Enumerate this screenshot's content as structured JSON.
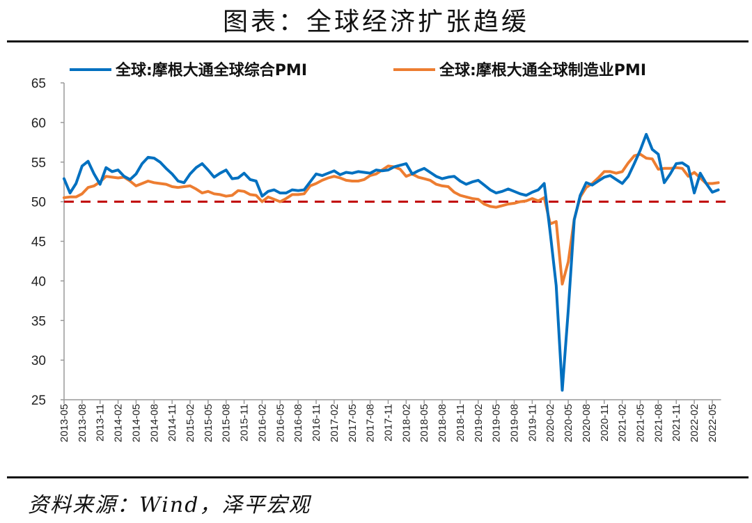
{
  "title": "图表：全球经济扩张趋缓",
  "source": "资料来源：Wind，泽平宏观",
  "chart_data": {
    "type": "line",
    "x_start": "2013-05",
    "x_tick_labels": [
      "2013-05",
      "2013-08",
      "2013-11",
      "2014-02",
      "2014-05",
      "2014-08",
      "2014-11",
      "2015-02",
      "2015-05",
      "2015-08",
      "2015-11",
      "2016-02",
      "2016-05",
      "2016-08",
      "2016-11",
      "2017-02",
      "2017-05",
      "2017-08",
      "2017-11",
      "2018-02",
      "2018-05",
      "2018-08",
      "2018-11",
      "2019-02",
      "2019-05",
      "2019-08",
      "2019-11",
      "2020-02",
      "2020-05",
      "2020-08",
      "2020-11",
      "2021-02",
      "2021-05",
      "2021-08",
      "2021-11",
      "2022-02",
      "2022-05"
    ],
    "y_tick_labels": [
      "25",
      "30",
      "35",
      "40",
      "45",
      "50",
      "55",
      "60",
      "65"
    ],
    "ylim": [
      25,
      65
    ],
    "reference_line": {
      "value": 50,
      "style": "dashed",
      "color": "#C00000"
    },
    "legend_position": "top",
    "series": [
      {
        "name": "全球:摩根大通全球综合PMI",
        "color": "#0070C0",
        "values": [
          52.9,
          51.1,
          52.3,
          54.5,
          55.1,
          53.5,
          52.2,
          54.3,
          53.8,
          54.0,
          53.2,
          52.8,
          53.5,
          54.8,
          55.6,
          55.5,
          55.0,
          54.2,
          53.5,
          52.6,
          52.4,
          53.5,
          54.3,
          54.8,
          54.0,
          53.1,
          53.6,
          54.0,
          52.9,
          53.0,
          53.6,
          52.8,
          52.6,
          50.7,
          51.3,
          51.5,
          51.1,
          51.1,
          51.5,
          51.4,
          51.5,
          52.5,
          53.5,
          53.3,
          53.6,
          53.9,
          53.4,
          53.7,
          53.6,
          53.8,
          53.7,
          53.6,
          54.0,
          53.9,
          54.0,
          54.4,
          54.6,
          54.8,
          53.5,
          53.9,
          54.2,
          53.7,
          53.2,
          52.9,
          53.1,
          53.2,
          52.6,
          52.2,
          52.5,
          52.7,
          52.1,
          51.5,
          51.1,
          51.3,
          51.6,
          51.3,
          51.0,
          50.8,
          51.2,
          51.5,
          52.3,
          46.1,
          39.4,
          26.2,
          36.3,
          47.7,
          50.8,
          52.4,
          52.1,
          52.6,
          53.1,
          53.3,
          52.8,
          52.3,
          53.2,
          54.8,
          56.5,
          58.5,
          56.6,
          56.0,
          52.4,
          53.5,
          54.8,
          54.9,
          54.4,
          51.1,
          53.6,
          52.3,
          51.2,
          51.5
        ]
      },
      {
        "name": "全球:摩根大通全球制造业PMI",
        "color": "#ED7D31",
        "values": [
          50.5,
          50.6,
          50.6,
          51.0,
          51.8,
          52.0,
          52.5,
          53.2,
          53.1,
          53.0,
          53.1,
          52.6,
          52.0,
          52.3,
          52.6,
          52.4,
          52.3,
          52.2,
          51.9,
          51.8,
          51.9,
          52.0,
          51.6,
          51.1,
          51.3,
          51.0,
          50.9,
          50.7,
          50.8,
          51.4,
          51.3,
          50.9,
          50.8,
          50.0,
          50.6,
          50.3,
          50.0,
          50.4,
          50.9,
          50.9,
          51.0,
          52.0,
          52.3,
          52.7,
          53.0,
          53.2,
          53.0,
          52.7,
          52.6,
          52.6,
          52.8,
          53.3,
          53.5,
          54.0,
          54.5,
          54.4,
          54.1,
          53.2,
          53.5,
          53.1,
          52.9,
          52.7,
          52.2,
          52.0,
          51.9,
          51.2,
          50.8,
          50.6,
          50.4,
          50.3,
          49.7,
          49.4,
          49.3,
          49.5,
          49.7,
          49.8,
          50.0,
          50.1,
          50.4,
          50.1,
          50.5,
          47.2,
          47.5,
          39.6,
          42.4,
          47.8,
          50.6,
          51.8,
          52.3,
          53.0,
          53.8,
          53.8,
          53.6,
          53.8,
          54.9,
          55.8,
          56.0,
          55.5,
          55.4,
          54.1,
          54.2,
          54.2,
          54.3,
          54.2,
          53.2,
          53.7,
          53.0,
          52.3,
          52.3,
          52.4
        ]
      }
    ]
  }
}
